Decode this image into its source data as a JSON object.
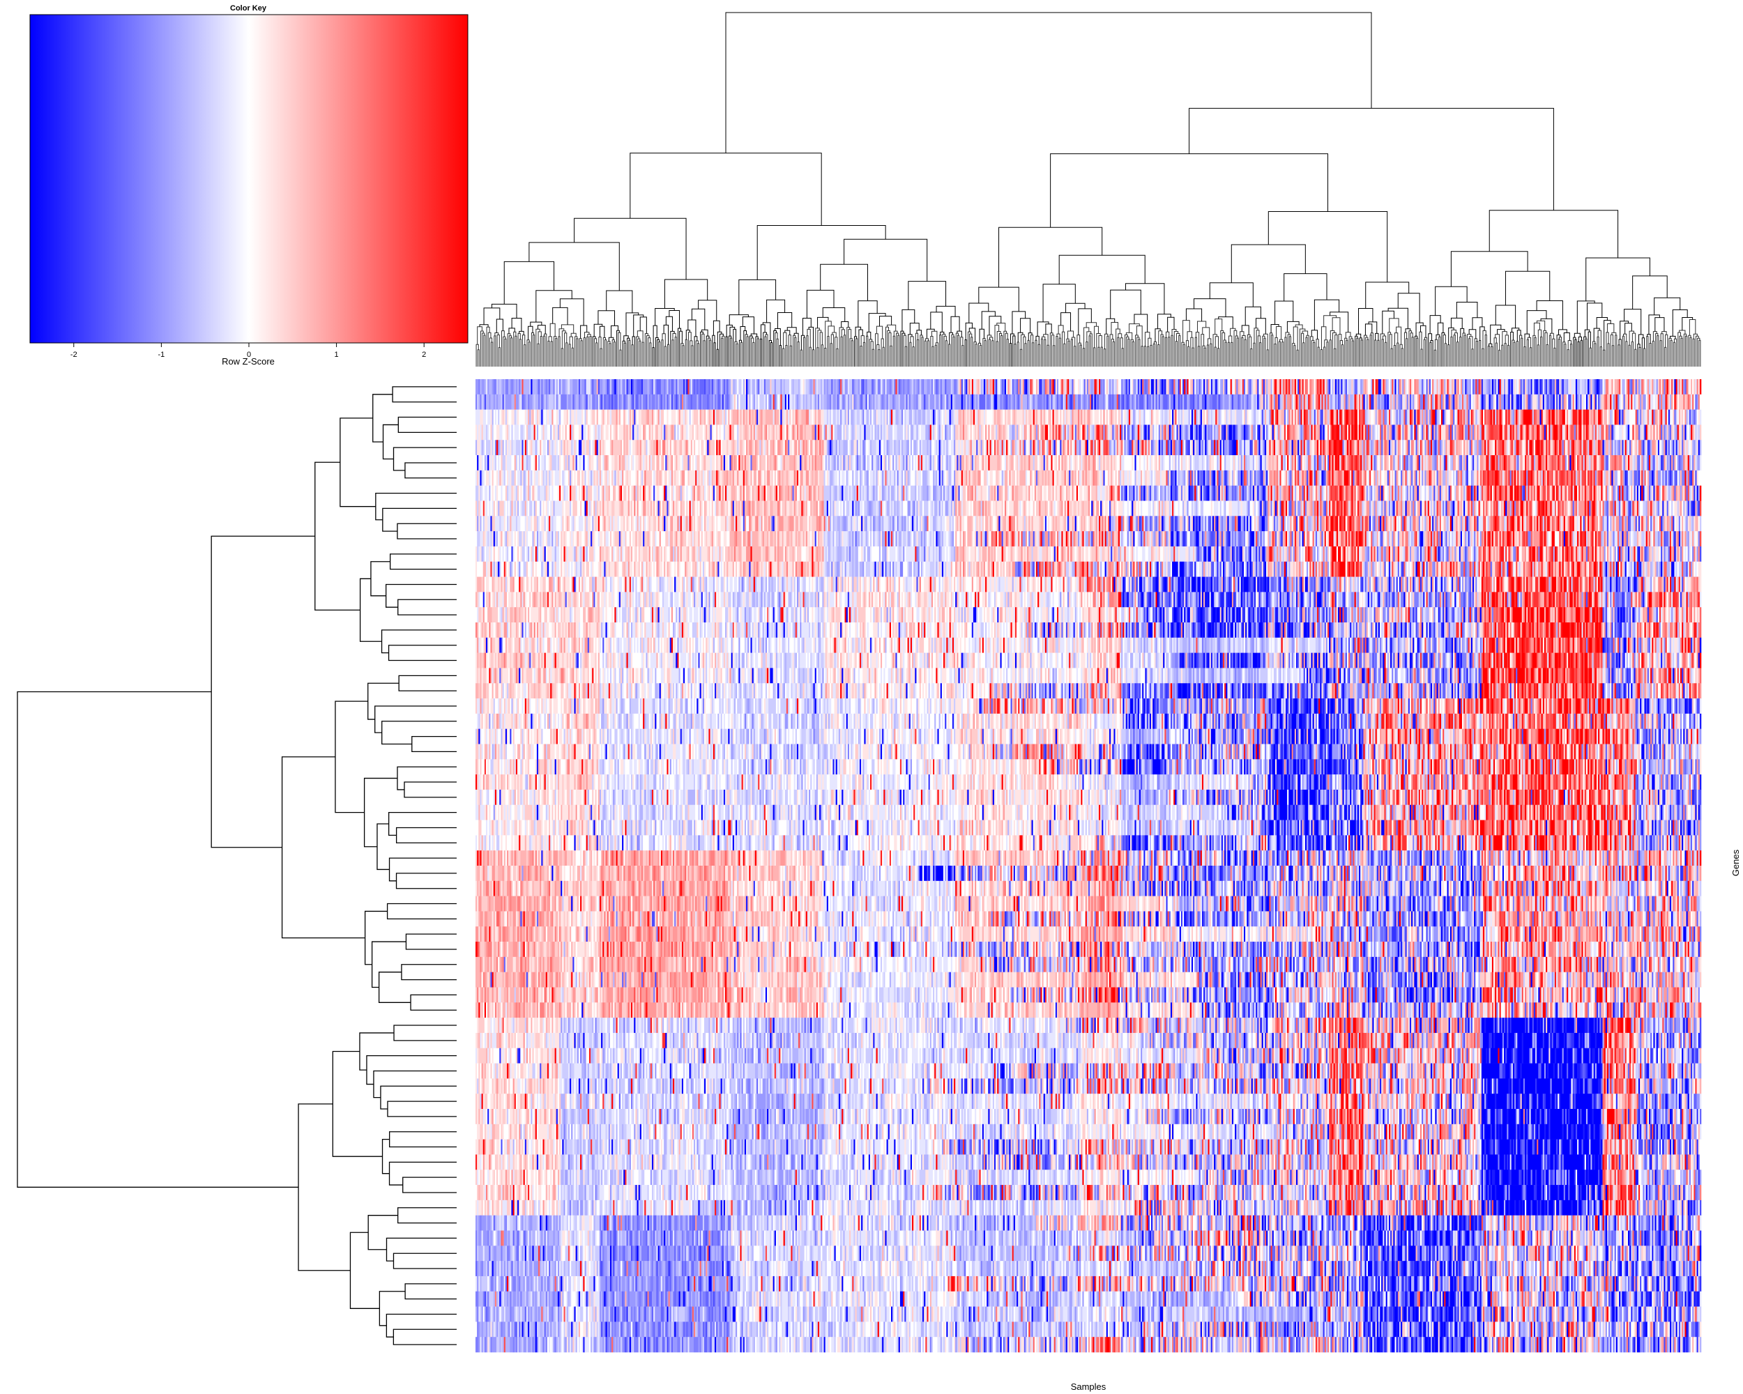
{
  "chart_data": {
    "type": "heatmap",
    "title": "",
    "xlabel": "Samples",
    "ylabel": "Genes",
    "n_rows": 64,
    "n_cols": 820,
    "zlim": [
      -2.5,
      2.5
    ],
    "colorscale": {
      "low": "#0000ff",
      "mid": "#ffffff",
      "high": "#ff0000"
    },
    "color_key": {
      "title": "Color Key",
      "label": "Row Z-Score",
      "ticks": [
        -2,
        -1,
        0,
        1,
        2
      ],
      "tick_labels": [
        "-2",
        "-1",
        "0",
        "1",
        "2"
      ]
    },
    "row_dendrogram": true,
    "column_dendrogram": true,
    "row_groups": [
      {
        "rows": [
          0,
          1
        ],
        "bias": -0.9
      },
      {
        "rows": [
          2,
          3,
          4,
          5,
          6,
          7,
          8,
          9,
          10,
          11,
          12
        ],
        "bias": 0.2
      },
      {
        "rows": [
          13,
          14,
          15,
          16,
          17,
          18,
          19,
          20
        ],
        "bias": 0.1
      },
      {
        "rows": [
          21,
          22,
          23,
          24,
          25,
          26,
          27,
          28,
          29,
          30
        ],
        "bias": 0.0
      },
      {
        "rows": [
          31,
          32,
          33,
          34,
          35,
          36,
          37,
          38,
          39,
          40,
          41
        ],
        "bias": 0.4
      },
      {
        "rows": [
          42,
          43,
          44,
          45,
          46,
          47,
          48,
          49,
          50,
          51,
          52,
          53,
          54
        ],
        "bias": -0.1
      },
      {
        "rows": [
          55,
          56,
          57,
          58,
          59,
          60,
          61,
          62,
          63
        ],
        "bias": -0.5
      }
    ]
  }
}
